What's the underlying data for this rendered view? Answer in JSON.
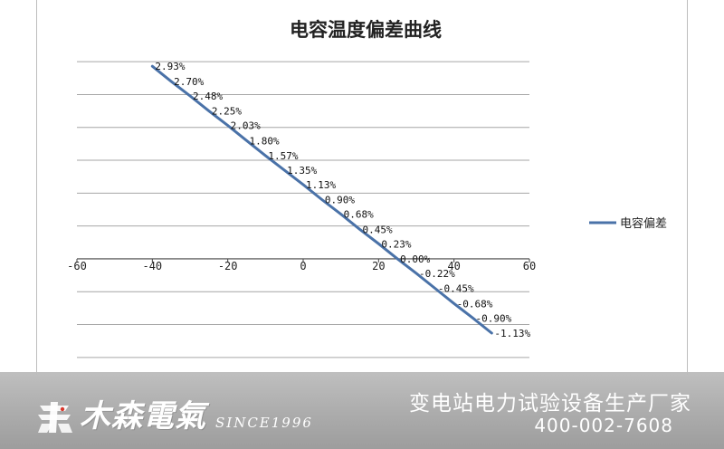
{
  "chart_data": {
    "type": "line",
    "title": "电容温度偏差曲线",
    "xlabel": "",
    "ylabel": "",
    "xlim": [
      -60,
      60
    ],
    "ylim": [
      -1.75,
      3.25
    ],
    "x_ticks": [
      "-60",
      "-40",
      "-20",
      "0",
      "20",
      "40",
      "60"
    ],
    "grid": true,
    "legend_position": "right",
    "series": [
      {
        "name": "电容偏差",
        "color": "#4a72a8",
        "x": [
          -40,
          -35,
          -30,
          -25,
          -20,
          -15,
          -10,
          -5,
          0,
          5,
          10,
          15,
          20,
          25,
          30,
          35,
          40,
          45,
          50
        ],
        "y": [
          2.93,
          2.7,
          2.48,
          2.25,
          2.03,
          1.8,
          1.57,
          1.35,
          1.13,
          0.9,
          0.68,
          0.45,
          0.23,
          0.0,
          -0.22,
          -0.45,
          -0.68,
          -0.9,
          -1.13
        ],
        "labels": [
          "2.93%",
          "2.70%",
          "2.48%",
          "2.25%",
          "2.03%",
          "1.80%",
          "1.57%",
          "1.35%",
          "1.13%",
          "0.90%",
          "0.68%",
          "0.45%",
          "0.23%",
          "0.00%",
          "-0.22%",
          "-0.45%",
          "-0.68%",
          "-0.90%",
          "-1.13%"
        ]
      }
    ]
  },
  "banner": {
    "brand_name": "木森電氣",
    "since": "SINCE1996",
    "tagline": "变电站电力试验设备生产厂家",
    "phone": "400-002-7608"
  }
}
